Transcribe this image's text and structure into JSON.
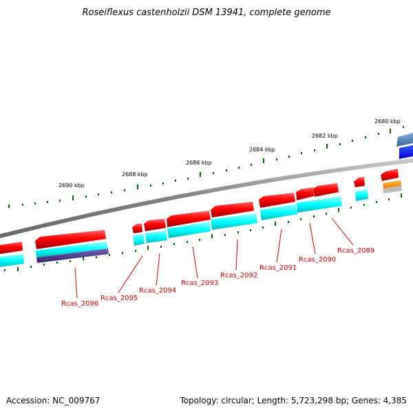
{
  "title": "Roseiflexus castenholzii DSM 13941, complete genome",
  "footer": {
    "accession": "Accession: NC_009767",
    "summary": "Topology: circular; Length: 5,723,298 bp; Genes: 4,385"
  },
  "colors": {
    "forward_gene": "#ff0000",
    "forward_cds": "#00ffff",
    "reverse_gene": "#ff0000",
    "reverse_cds": "#00ffff",
    "backbone": "#808080",
    "tick": "#006600",
    "label": "#cc0000",
    "blue_feature": "#0000ee",
    "orange_feature": "#ff8800",
    "purple_feature": "#553399"
  },
  "kbp_labels": [
    "2680 kbp",
    "2682 kbp",
    "2684 kbp",
    "2686 kbp",
    "2688 kbp",
    "2690 kbp"
  ],
  "gene_labels": [
    "Rcas_2096",
    "Rcas_2095",
    "Rcas_2094",
    "Rcas_2093",
    "Rcas_2092",
    "Rcas_2091",
    "Rcas_2090",
    "Rcas_2089"
  ]
}
